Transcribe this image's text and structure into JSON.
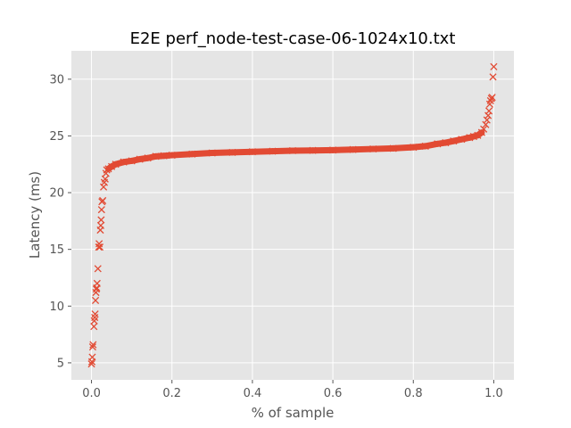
{
  "chart_data": {
    "type": "scatter",
    "title": "E2E perf_node-test-case-06-1024x10.txt",
    "xlabel": "% of sample",
    "ylabel": "Latency (ms)",
    "xlim": [
      -0.05,
      1.05
    ],
    "ylim": [
      3.5,
      32.5
    ],
    "xticks": [
      0.0,
      0.2,
      0.4,
      0.6,
      0.8,
      1.0
    ],
    "xtick_labels": [
      "0.0",
      "0.2",
      "0.4",
      "0.6",
      "0.8",
      "1.0"
    ],
    "yticks": [
      5,
      10,
      15,
      20,
      25,
      30
    ],
    "ytick_labels": [
      "5",
      "10",
      "15",
      "20",
      "25",
      "30"
    ],
    "grid": true,
    "marker": "x",
    "marker_color": "#E24A33",
    "background_color": "#E5E5E5",
    "grid_color": "#FFFFFF",
    "series": [
      {
        "points": [
          [
            0.0,
            4.9
          ],
          [
            0.001,
            5.1
          ],
          [
            0.002,
            5.5
          ],
          [
            0.003,
            6.4
          ],
          [
            0.004,
            6.6
          ],
          [
            0.006,
            8.2
          ],
          [
            0.007,
            8.7
          ],
          [
            0.008,
            9.0
          ],
          [
            0.009,
            9.3
          ],
          [
            0.01,
            10.5
          ],
          [
            0.011,
            11.2
          ],
          [
            0.012,
            11.5
          ],
          [
            0.013,
            11.6
          ],
          [
            0.014,
            12.0
          ],
          [
            0.016,
            13.3
          ],
          [
            0.018,
            15.2
          ],
          [
            0.019,
            15.5
          ],
          [
            0.021,
            15.2
          ],
          [
            0.022,
            16.7
          ],
          [
            0.023,
            17.1
          ],
          [
            0.024,
            17.6
          ],
          [
            0.025,
            18.5
          ],
          [
            0.026,
            19.2
          ],
          [
            0.028,
            19.3
          ],
          [
            0.03,
            20.5
          ],
          [
            0.032,
            20.9
          ],
          [
            0.034,
            21.2
          ],
          [
            0.036,
            21.7
          ],
          [
            0.038,
            22.0
          ],
          [
            0.042,
            22.1
          ],
          [
            0.05,
            22.3
          ],
          [
            0.06,
            22.5
          ],
          [
            0.08,
            22.7
          ],
          [
            0.1,
            22.8
          ],
          [
            0.12,
            22.95
          ],
          [
            0.14,
            23.05
          ],
          [
            0.16,
            23.2
          ],
          [
            0.18,
            23.25
          ],
          [
            0.2,
            23.3
          ],
          [
            0.25,
            23.4
          ],
          [
            0.3,
            23.5
          ],
          [
            0.35,
            23.55
          ],
          [
            0.4,
            23.6
          ],
          [
            0.45,
            23.65
          ],
          [
            0.5,
            23.7
          ],
          [
            0.55,
            23.72
          ],
          [
            0.6,
            23.75
          ],
          [
            0.65,
            23.8
          ],
          [
            0.7,
            23.85
          ],
          [
            0.75,
            23.9
          ],
          [
            0.8,
            24.0
          ],
          [
            0.83,
            24.1
          ],
          [
            0.86,
            24.3
          ],
          [
            0.88,
            24.4
          ],
          [
            0.9,
            24.55
          ],
          [
            0.92,
            24.7
          ],
          [
            0.94,
            24.85
          ],
          [
            0.95,
            24.95
          ],
          [
            0.96,
            25.05
          ],
          [
            0.97,
            25.3
          ],
          [
            0.975,
            25.6
          ],
          [
            0.98,
            26.0
          ],
          [
            0.983,
            26.4
          ],
          [
            0.986,
            26.8
          ],
          [
            0.988,
            27.2
          ],
          [
            0.99,
            27.8
          ],
          [
            0.992,
            28.1
          ],
          [
            0.994,
            28.3
          ],
          [
            0.996,
            28.4
          ],
          [
            0.998,
            30.2
          ],
          [
            1.0,
            31.1
          ]
        ]
      }
    ]
  }
}
